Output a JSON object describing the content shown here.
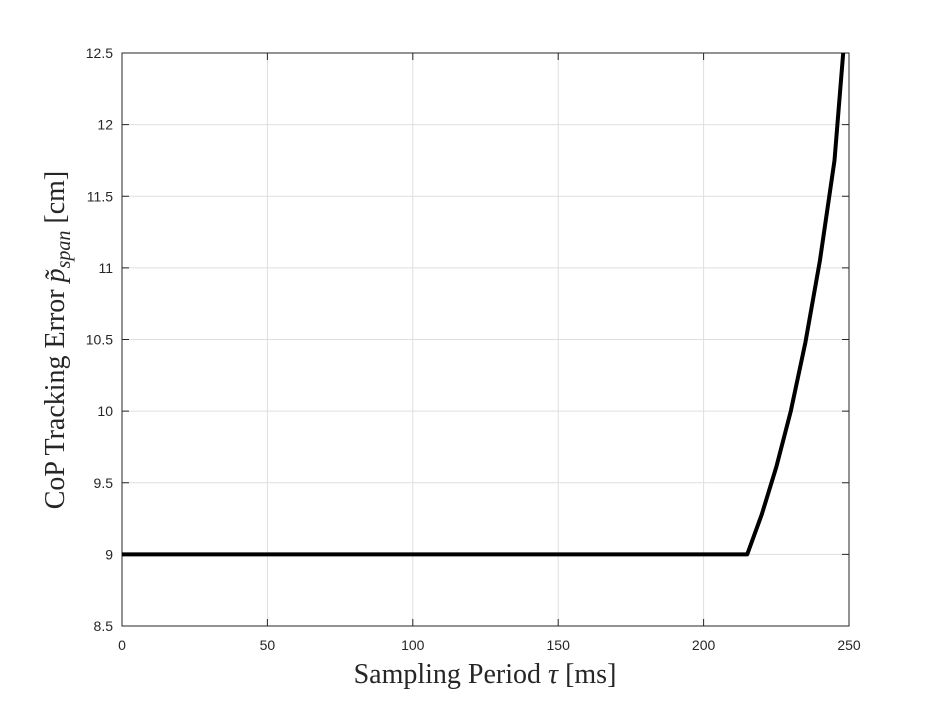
{
  "chart_data": {
    "type": "line",
    "xlabel_main": "Sampling Period",
    "xlabel_symbol": "τ",
    "xlabel_unit": "[ms]",
    "ylabel_main": "CoP Tracking Error",
    "ylabel_symbol": "p̃",
    "ylabel_subscript": "span",
    "ylabel_unit": "[cm]",
    "xlim": [
      0,
      250
    ],
    "ylim": [
      8.5,
      12.5
    ],
    "xticks": [
      0,
      50,
      100,
      150,
      200,
      250
    ],
    "xtick_labels": [
      "0",
      "50",
      "100",
      "150",
      "200",
      "250"
    ],
    "yticks": [
      8.5,
      9,
      9.5,
      10,
      10.5,
      11,
      11.5,
      12,
      12.5
    ],
    "ytick_labels": [
      "8.5",
      "9",
      "9.5",
      "10",
      "10.5",
      "11",
      "11.5",
      "12",
      "12.5"
    ],
    "grid": true,
    "series": [
      {
        "color": "#000000",
        "x": [
          0,
          50,
          100,
          150,
          200,
          215,
          220,
          225,
          230,
          235,
          240,
          245,
          248
        ],
        "y": [
          9.0,
          9.0,
          9.0,
          9.0,
          9.0,
          9.0,
          9.28,
          9.61,
          10.0,
          10.48,
          11.05,
          11.75,
          12.5
        ]
      }
    ]
  }
}
